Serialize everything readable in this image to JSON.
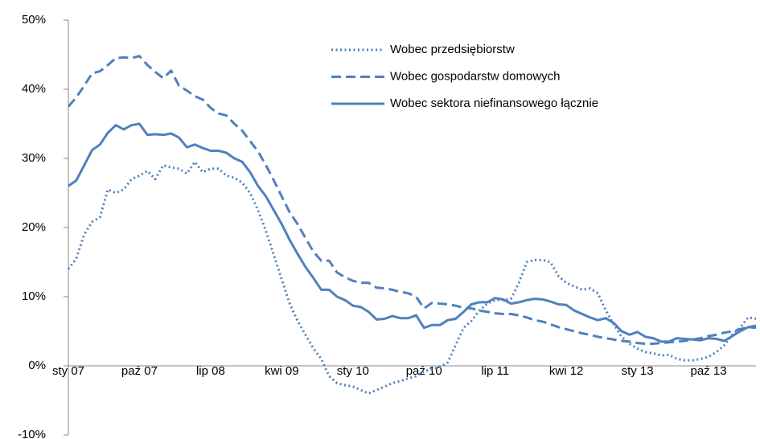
{
  "chart_data": {
    "type": "line",
    "categories": [
      "sty 07",
      null,
      null,
      null,
      null,
      null,
      null,
      null,
      null,
      "paź 07",
      null,
      null,
      null,
      null,
      null,
      null,
      null,
      null,
      "lip 08",
      null,
      null,
      null,
      null,
      null,
      null,
      null,
      null,
      "kwi 09",
      null,
      null,
      null,
      null,
      null,
      null,
      null,
      null,
      "sty 10",
      null,
      null,
      null,
      null,
      null,
      null,
      null,
      null,
      "paź 10",
      null,
      null,
      null,
      null,
      null,
      null,
      null,
      null,
      "lip 11",
      null,
      null,
      null,
      null,
      null,
      null,
      null,
      null,
      "kwi 12",
      null,
      null,
      null,
      null,
      null,
      null,
      null,
      null,
      "sty 13",
      null,
      null,
      null,
      null,
      null,
      null,
      null,
      null,
      "paź 13",
      null,
      null,
      null,
      null,
      null,
      null
    ],
    "series": [
      {
        "name": "Wobec przedsiębiorstw",
        "color": "#4f81bd",
        "style": "dotted",
        "values": [
          14,
          15.5,
          19,
          20.8,
          21.5,
          25.5,
          25,
          25.5,
          27,
          27.5,
          28.2,
          27,
          29,
          28.7,
          28.5,
          27.8,
          29.5,
          28,
          28.5,
          28.5,
          27.5,
          27.2,
          26.5,
          25,
          22.5,
          19.5,
          16,
          12.5,
          9,
          6.5,
          4.5,
          2.5,
          1,
          -1.5,
          -2.5,
          -2.8,
          -3,
          -3.5,
          -4,
          -3.5,
          -3,
          -2.5,
          -2.2,
          -1.8,
          -1.5,
          -0.8,
          -0.5,
          -0.2,
          0.5,
          3,
          5.5,
          6.5,
          8,
          9,
          9.5,
          9.5,
          9.7,
          12,
          15,
          15.3,
          15.3,
          15,
          13,
          12,
          11.5,
          11,
          11.2,
          10.5,
          8,
          6,
          4.2,
          3.2,
          2.5,
          2,
          1.8,
          1.5,
          1.6,
          1,
          0.8,
          0.8,
          1,
          1.3,
          2,
          3,
          4.5,
          5.5,
          7,
          6.8
        ]
      },
      {
        "name": "Wobec gospodarstw domowych",
        "color": "#4f81bd",
        "style": "dashed",
        "values": [
          37.5,
          38.8,
          40.5,
          42.3,
          42.6,
          43.5,
          44.5,
          44.6,
          44.5,
          44.8,
          43.5,
          42.5,
          41.6,
          42.7,
          40.5,
          39.8,
          39,
          38.5,
          37.3,
          36.5,
          36.2,
          35,
          34,
          32.5,
          31,
          29,
          26.8,
          24.5,
          22.2,
          20.5,
          18.5,
          16.5,
          15.2,
          15.2,
          13.5,
          12.8,
          12.3,
          12,
          12,
          11.3,
          11.2,
          11,
          10.7,
          10.5,
          10,
          8.3,
          9.1,
          9,
          8.9,
          8.7,
          8.4,
          8.3,
          8,
          7.8,
          7.6,
          7.5,
          7.5,
          7.3,
          7,
          6.6,
          6.4,
          6,
          5.6,
          5.3,
          5,
          4.7,
          4.5,
          4.2,
          4,
          3.8,
          3.6,
          3.5,
          3.3,
          3.2,
          3.2,
          3.3,
          3.4,
          3.5,
          3.6,
          3.8,
          4,
          4.3,
          4.5,
          4.8,
          5,
          5.3,
          5.6,
          5.8
        ]
      },
      {
        "name": "Wobec sektora niefinansowego łącznie",
        "color": "#4f81bd",
        "style": "solid",
        "values": [
          26,
          26.8,
          29,
          31.2,
          32,
          33.7,
          34.8,
          34.2,
          34.8,
          35,
          33.4,
          33.5,
          33.4,
          33.6,
          33,
          31.6,
          32,
          31.5,
          31.1,
          31.1,
          30.8,
          30,
          29.5,
          28,
          26,
          24.5,
          22.5,
          20.5,
          18.2,
          16.2,
          14.3,
          12.7,
          11,
          11,
          10,
          9.5,
          8.7,
          8.5,
          7.8,
          6.7,
          6.8,
          7.2,
          6.9,
          6.9,
          7.3,
          5.5,
          5.9,
          5.9,
          6.6,
          6.8,
          7.8,
          8.9,
          9.2,
          9.2,
          9.8,
          9.6,
          9,
          9.2,
          9.5,
          9.7,
          9.6,
          9.3,
          8.9,
          8.8,
          8,
          7.5,
          7,
          6.6,
          6.9,
          6.2,
          5,
          4.5,
          4.9,
          4.2,
          4,
          3.5,
          3.5,
          4,
          3.9,
          3.8,
          3.7,
          4,
          3.9,
          3.6,
          4.3,
          5,
          5.6,
          5.5
        ]
      }
    ],
    "ylim": [
      -10,
      50
    ],
    "yticks": [
      {
        "value": -10,
        "label": "-10%"
      },
      {
        "value": 0,
        "label": "0%"
      },
      {
        "value": 10,
        "label": "10%"
      },
      {
        "value": 20,
        "label": "20%"
      },
      {
        "value": 30,
        "label": "30%"
      },
      {
        "value": 40,
        "label": "40%"
      },
      {
        "value": 50,
        "label": "50%"
      }
    ],
    "legend": "top-right"
  }
}
